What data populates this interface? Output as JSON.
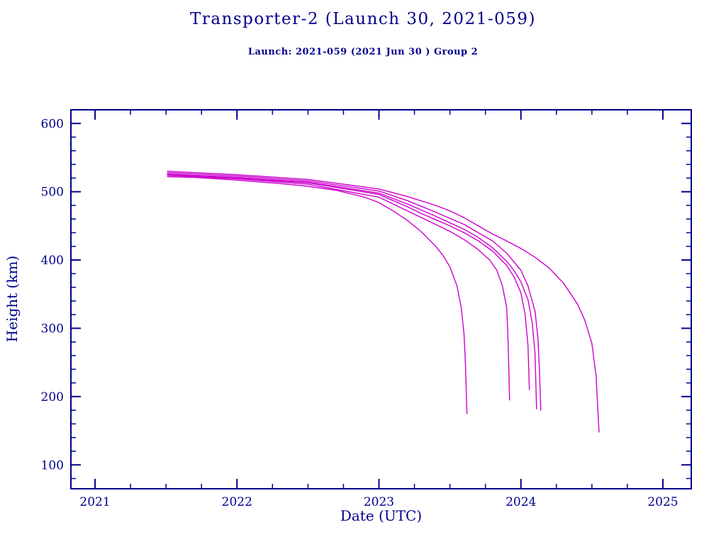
{
  "title": "Transporter-2 (Launch 30, 2021-059)",
  "subtitle": "Launch: 2021-059  (2021 Jun 30 )  Group 2",
  "colors": {
    "axis": "#00008b",
    "series": "#cc00cc",
    "background": "#ffffff"
  },
  "chart_data": {
    "type": "line",
    "title": "Transporter-2 (Launch 30, 2021-059)",
    "subtitle": "Launch: 2021-059  (2021 Jun 30 )  Group 2",
    "xlabel": "Date (UTC)",
    "ylabel": "Height (km)",
    "xlim": [
      2020.83,
      2025.2
    ],
    "ylim": [
      65,
      620
    ],
    "x_major_ticks": [
      2021,
      2022,
      2023,
      2024,
      2025
    ],
    "x_minor_step": 0.25,
    "y_major_ticks": [
      100,
      200,
      300,
      400,
      500,
      600
    ],
    "y_minor_step": 20,
    "grid": false,
    "legend": "none",
    "series_color": "#cc00cc",
    "series": [
      {
        "name": "series-1",
        "points": [
          [
            2021.51,
            522
          ],
          [
            2021.7,
            521
          ],
          [
            2022.0,
            517
          ],
          [
            2022.3,
            512
          ],
          [
            2022.5,
            508
          ],
          [
            2022.7,
            502
          ],
          [
            2022.9,
            492
          ],
          [
            2023.0,
            484
          ],
          [
            2023.1,
            472
          ],
          [
            2023.2,
            458
          ],
          [
            2023.3,
            441
          ],
          [
            2023.4,
            420
          ],
          [
            2023.45,
            407
          ],
          [
            2023.5,
            390
          ],
          [
            2023.55,
            362
          ],
          [
            2023.58,
            330
          ],
          [
            2023.6,
            290
          ],
          [
            2023.61,
            245
          ],
          [
            2023.62,
            175
          ]
        ]
      },
      {
        "name": "series-2",
        "points": [
          [
            2021.51,
            524
          ],
          [
            2022.0,
            519
          ],
          [
            2022.5,
            511
          ],
          [
            2023.0,
            492
          ],
          [
            2023.1,
            482
          ],
          [
            2023.2,
            472
          ],
          [
            2023.3,
            462
          ],
          [
            2023.4,
            452
          ],
          [
            2023.5,
            442
          ],
          [
            2023.6,
            430
          ],
          [
            2023.7,
            415
          ],
          [
            2023.78,
            400
          ],
          [
            2023.83,
            385
          ],
          [
            2023.87,
            362
          ],
          [
            2023.9,
            330
          ],
          [
            2023.91,
            280
          ],
          [
            2023.92,
            195
          ]
        ]
      },
      {
        "name": "series-3",
        "points": [
          [
            2021.51,
            525
          ],
          [
            2022.0,
            520
          ],
          [
            2022.5,
            513
          ],
          [
            2023.0,
            496
          ],
          [
            2023.1,
            487
          ],
          [
            2023.2,
            478
          ],
          [
            2023.3,
            468
          ],
          [
            2023.4,
            459
          ],
          [
            2023.5,
            450
          ],
          [
            2023.6,
            440
          ],
          [
            2023.7,
            428
          ],
          [
            2023.8,
            413
          ],
          [
            2023.9,
            392
          ],
          [
            2023.95,
            376
          ],
          [
            2024.0,
            352
          ],
          [
            2024.03,
            320
          ],
          [
            2024.05,
            275
          ],
          [
            2024.06,
            210
          ]
        ]
      },
      {
        "name": "series-4",
        "points": [
          [
            2021.51,
            526
          ],
          [
            2022.0,
            521
          ],
          [
            2022.5,
            514
          ],
          [
            2023.0,
            498
          ],
          [
            2023.2,
            482
          ],
          [
            2023.4,
            464
          ],
          [
            2023.6,
            445
          ],
          [
            2023.7,
            433
          ],
          [
            2023.8,
            418
          ],
          [
            2023.9,
            398
          ],
          [
            2023.95,
            385
          ],
          [
            2024.0,
            368
          ],
          [
            2024.05,
            342
          ],
          [
            2024.08,
            308
          ],
          [
            2024.1,
            262
          ],
          [
            2024.11,
            182
          ]
        ]
      },
      {
        "name": "series-5",
        "points": [
          [
            2021.51,
            528
          ],
          [
            2022.0,
            523
          ],
          [
            2022.5,
            516
          ],
          [
            2023.0,
            501
          ],
          [
            2023.2,
            487
          ],
          [
            2023.4,
            470
          ],
          [
            2023.6,
            452
          ],
          [
            2023.8,
            428
          ],
          [
            2023.9,
            410
          ],
          [
            2024.0,
            385
          ],
          [
            2024.05,
            362
          ],
          [
            2024.1,
            325
          ],
          [
            2024.12,
            285
          ],
          [
            2024.13,
            240
          ],
          [
            2024.14,
            180
          ]
        ]
      },
      {
        "name": "series-6",
        "points": [
          [
            2021.51,
            530
          ],
          [
            2022.0,
            525
          ],
          [
            2022.5,
            518
          ],
          [
            2023.0,
            504
          ],
          [
            2023.2,
            493
          ],
          [
            2023.4,
            480
          ],
          [
            2023.5,
            472
          ],
          [
            2023.6,
            462
          ],
          [
            2023.7,
            450
          ],
          [
            2023.8,
            438
          ],
          [
            2023.9,
            428
          ],
          [
            2024.0,
            417
          ],
          [
            2024.1,
            404
          ],
          [
            2024.2,
            388
          ],
          [
            2024.3,
            366
          ],
          [
            2024.4,
            335
          ],
          [
            2024.45,
            312
          ],
          [
            2024.5,
            278
          ],
          [
            2024.53,
            230
          ],
          [
            2024.55,
            148
          ]
        ]
      }
    ]
  }
}
